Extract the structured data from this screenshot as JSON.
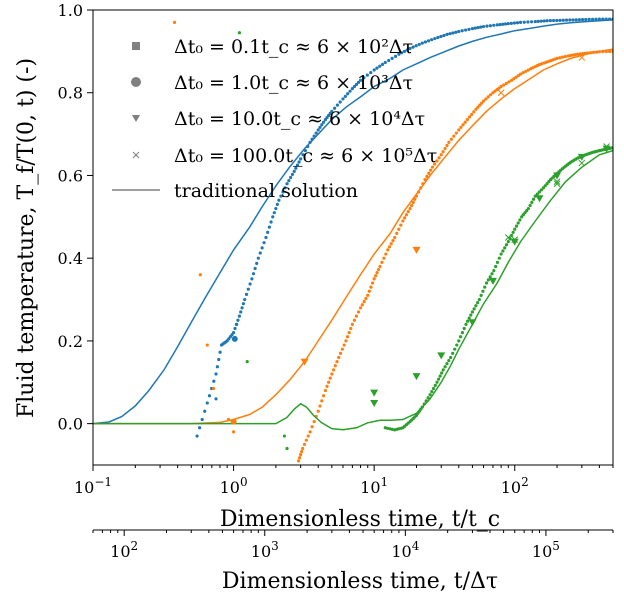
{
  "chart_data": {
    "type": "line",
    "xlabel": "Dimensionless time, t/t_c",
    "ylabel": "Fluid temperature, T_f/T(0, t) (-)",
    "secondary_xlabel": "Dimensionless time, t/Δτ",
    "x_scale": "log",
    "xlim": [
      0.1,
      500
    ],
    "ylim": [
      -0.1,
      1.0
    ],
    "secondary_xlim": [
      60,
      300000
    ],
    "x_ticks": [
      {
        "value": 0.1,
        "base": "10",
        "exp": "−1"
      },
      {
        "value": 1,
        "base": "10",
        "exp": "0"
      },
      {
        "value": 10,
        "base": "10",
        "exp": "1"
      },
      {
        "value": 100,
        "base": "10",
        "exp": "2"
      }
    ],
    "secondary_x_ticks": [
      {
        "value": 100,
        "base": "10",
        "exp": "2"
      },
      {
        "value": 1000,
        "base": "10",
        "exp": "3"
      },
      {
        "value": 10000,
        "base": "10",
        "exp": "4"
      },
      {
        "value": 100000,
        "base": "10",
        "exp": "5"
      }
    ],
    "y_ticks": [
      "1.0",
      "0.8",
      "0.6",
      "0.4",
      "0.2",
      "0.0"
    ],
    "y_tick_values": [
      1.0,
      0.8,
      0.6,
      0.4,
      0.2,
      0.0
    ],
    "legend": [
      {
        "label": "Δt₀ = 0.1t_c ≈ 6 × 10²Δτ",
        "marker": "square",
        "color": "#808080"
      },
      {
        "label": "Δt₀ = 1.0t_c ≈ 6 × 10³Δτ",
        "marker": "circle",
        "color": "#808080"
      },
      {
        "label": "Δt₀ = 10.0t_c ≈ 6 × 10⁴Δτ",
        "marker": "triangle-down",
        "color": "#808080"
      },
      {
        "label": "Δt₀ = 100.0t_c ≈ 6 × 10⁵Δτ",
        "marker": "x",
        "color": "#808080"
      },
      {
        "label": "traditional solution",
        "marker": "line",
        "color": "#808080"
      }
    ],
    "legend_position": "top-left",
    "colors": {
      "blue": "#1f77b4",
      "orange": "#ff7f0e",
      "green": "#2ca02c"
    },
    "series": [
      {
        "group": "blue",
        "kind": "line",
        "x": [
          0.1,
          0.13,
          0.16,
          0.2,
          0.25,
          0.32,
          0.4,
          0.5,
          0.63,
          0.8,
          1.0,
          1.3,
          1.6,
          2.0,
          2.5,
          3.2,
          4.0,
          5.0,
          6.3,
          8.0,
          10,
          13,
          16,
          20,
          25,
          32,
          40,
          50,
          63,
          80,
          100,
          130,
          160,
          200,
          250,
          320,
          400,
          500
        ],
        "y": [
          0.0,
          0.004,
          0.017,
          0.043,
          0.08,
          0.13,
          0.186,
          0.245,
          0.305,
          0.365,
          0.42,
          0.475,
          0.525,
          0.575,
          0.62,
          0.665,
          0.7,
          0.735,
          0.765,
          0.79,
          0.815,
          0.835,
          0.855,
          0.87,
          0.885,
          0.9,
          0.913,
          0.924,
          0.934,
          0.942,
          0.95,
          0.956,
          0.961,
          0.966,
          0.969,
          0.972,
          0.974,
          0.976
        ]
      },
      {
        "group": "blue",
        "kind": "markers",
        "x": [
          0.55,
          0.65,
          0.75,
          0.82,
          0.9,
          1.0,
          1.1,
          1.2,
          1.35,
          1.5,
          1.7,
          1.9,
          2.1,
          2.4,
          2.7,
          3.0,
          3.5,
          4.0,
          4.5,
          5.0,
          6.0,
          7.0,
          8.0,
          10,
          12,
          15,
          18,
          22,
          27,
          33,
          40,
          50,
          60,
          75,
          90,
          110,
          140,
          170,
          210,
          260,
          320,
          400,
          500
        ],
        "y": [
          -0.03,
          0.05,
          0.12,
          0.19,
          0.2,
          0.22,
          0.26,
          0.3,
          0.35,
          0.4,
          0.45,
          0.5,
          0.54,
          0.58,
          0.61,
          0.64,
          0.68,
          0.71,
          0.735,
          0.755,
          0.785,
          0.81,
          0.83,
          0.855,
          0.873,
          0.893,
          0.907,
          0.92,
          0.931,
          0.941,
          0.948,
          0.955,
          0.96,
          0.964,
          0.967,
          0.97,
          0.972,
          0.974,
          0.975,
          0.976,
          0.977,
          0.978,
          0.978
        ]
      },
      {
        "group": "orange",
        "kind": "line",
        "x": [
          0.1,
          0.5,
          0.8,
          1.0,
          1.3,
          1.6,
          2.0,
          2.5,
          3.2,
          4.0,
          5.0,
          6.3,
          8.0,
          10,
          13,
          16,
          20,
          25,
          32,
          40,
          50,
          63,
          80,
          100,
          130,
          160,
          200,
          250,
          320,
          400,
          500
        ],
        "y": [
          0.0,
          0.0,
          0.003,
          0.01,
          0.022,
          0.04,
          0.07,
          0.105,
          0.15,
          0.2,
          0.25,
          0.305,
          0.36,
          0.41,
          0.46,
          0.51,
          0.555,
          0.6,
          0.645,
          0.685,
          0.72,
          0.755,
          0.785,
          0.81,
          0.835,
          0.855,
          0.87,
          0.883,
          0.893,
          0.9,
          0.905
        ]
      },
      {
        "group": "orange",
        "kind": "markers",
        "x": [
          2.9,
          3.1,
          3.5,
          4.0,
          4.5,
          5.0,
          5.6,
          6.3,
          7.0,
          8.0,
          9.0,
          10,
          11,
          12.5,
          14,
          16,
          18,
          20,
          23,
          26,
          30,
          34,
          40,
          46,
          53,
          60,
          70,
          80,
          95,
          110,
          130,
          150,
          175,
          200,
          240,
          280,
          330,
          400,
          500
        ],
        "y": [
          -0.09,
          -0.06,
          -0.02,
          0.03,
          0.08,
          0.12,
          0.16,
          0.2,
          0.24,
          0.28,
          0.31,
          0.35,
          0.38,
          0.42,
          0.45,
          0.49,
          0.52,
          0.55,
          0.59,
          0.62,
          0.65,
          0.68,
          0.71,
          0.735,
          0.76,
          0.78,
          0.8,
          0.815,
          0.83,
          0.845,
          0.858,
          0.868,
          0.876,
          0.883,
          0.889,
          0.893,
          0.896,
          0.899,
          0.9
        ]
      },
      {
        "group": "green",
        "kind": "line",
        "x": [
          0.1,
          1.0,
          2.0,
          2.4,
          2.7,
          3.0,
          3.3,
          3.7,
          4.2,
          5.0,
          6.0,
          7.5,
          9,
          11,
          13,
          16,
          20,
          25,
          30,
          35,
          40,
          50,
          60,
          75,
          90,
          110,
          140,
          180,
          230,
          300,
          400,
          500
        ],
        "y": [
          0.0,
          0.0,
          0.0,
          0.015,
          0.035,
          0.048,
          0.04,
          0.02,
          0.003,
          -0.012,
          -0.015,
          -0.01,
          0.002,
          0.008,
          0.008,
          0.01,
          0.025,
          0.06,
          0.1,
          0.14,
          0.18,
          0.24,
          0.29,
          0.34,
          0.39,
          0.44,
          0.49,
          0.54,
          0.585,
          0.62,
          0.65,
          0.66
        ]
      },
      {
        "group": "green",
        "kind": "markers",
        "x": [
          12,
          14,
          16,
          18,
          20,
          22,
          25,
          28,
          31,
          35,
          40,
          45,
          50,
          56,
          63,
          71,
          80,
          90,
          100,
          112,
          125,
          140,
          160,
          180,
          200,
          225,
          250,
          280,
          320,
          360,
          400,
          450,
          500
        ],
        "y": [
          -0.01,
          -0.015,
          -0.01,
          0.005,
          0.02,
          0.04,
          0.07,
          0.1,
          0.13,
          0.16,
          0.2,
          0.24,
          0.27,
          0.3,
          0.34,
          0.37,
          0.41,
          0.44,
          0.47,
          0.5,
          0.52,
          0.55,
          0.57,
          0.59,
          0.605,
          0.62,
          0.632,
          0.642,
          0.65,
          0.656,
          0.66,
          0.664,
          0.667
        ]
      },
      {
        "group": "green",
        "kind": "triangles",
        "x": [
          10,
          20,
          30,
          50,
          70,
          100,
          150,
          200,
          300,
          450
        ],
        "y": [
          0.05,
          0.115,
          0.165,
          0.245,
          0.345,
          0.44,
          0.545,
          0.6,
          0.645,
          0.665
        ]
      },
      {
        "group": "green",
        "kind": "x-markers",
        "x": [
          100,
          200,
          300,
          450
        ],
        "y": [
          0.445,
          0.58,
          0.63,
          0.67
        ]
      }
    ],
    "scatter_points": [
      {
        "x": 0.38,
        "y": 0.97,
        "color": "orange",
        "marker": "dot"
      },
      {
        "x": 0.58,
        "y": 0.36,
        "color": "orange",
        "marker": "dot"
      },
      {
        "x": 0.65,
        "y": 0.19,
        "color": "orange",
        "marker": "dot"
      },
      {
        "x": 0.92,
        "y": 0.01,
        "color": "orange",
        "marker": "dot"
      },
      {
        "x": 1.02,
        "y": 0.205,
        "color": "blue",
        "marker": "circle"
      },
      {
        "x": 1.1,
        "y": 0.945,
        "color": "green",
        "marker": "dot"
      },
      {
        "x": 1.25,
        "y": 0.15,
        "color": "green",
        "marker": "dot"
      },
      {
        "x": 2.3,
        "y": -0.03,
        "color": "green",
        "marker": "dot"
      },
      {
        "x": 2.4,
        "y": -0.06,
        "color": "green",
        "marker": "dot"
      },
      {
        "x": 1.0,
        "y": 0.005,
        "color": "orange",
        "marker": "circle"
      },
      {
        "x": 1.0,
        "y": -0.02,
        "color": "orange",
        "marker": "dot"
      },
      {
        "x": 0.72,
        "y": 0.085,
        "color": "orange",
        "marker": "dot"
      },
      {
        "x": 1.05,
        "y": 0.24,
        "color": "blue",
        "marker": "dot"
      },
      {
        "x": 0.75,
        "y": 0.06,
        "color": "blue",
        "marker": "dot"
      },
      {
        "x": 20,
        "y": 0.42,
        "color": "orange",
        "marker": "triangle"
      },
      {
        "x": 3.2,
        "y": 0.15,
        "color": "orange",
        "marker": "triangle"
      },
      {
        "x": 10,
        "y": 0.075,
        "color": "green",
        "marker": "triangle"
      },
      {
        "x": 90,
        "y": 0.45,
        "color": "green",
        "marker": "x"
      },
      {
        "x": 200,
        "y": 0.585,
        "color": "green",
        "marker": "x"
      },
      {
        "x": 80,
        "y": 0.8,
        "color": "orange",
        "marker": "x"
      },
      {
        "x": 300,
        "y": 0.885,
        "color": "orange",
        "marker": "x"
      }
    ]
  }
}
